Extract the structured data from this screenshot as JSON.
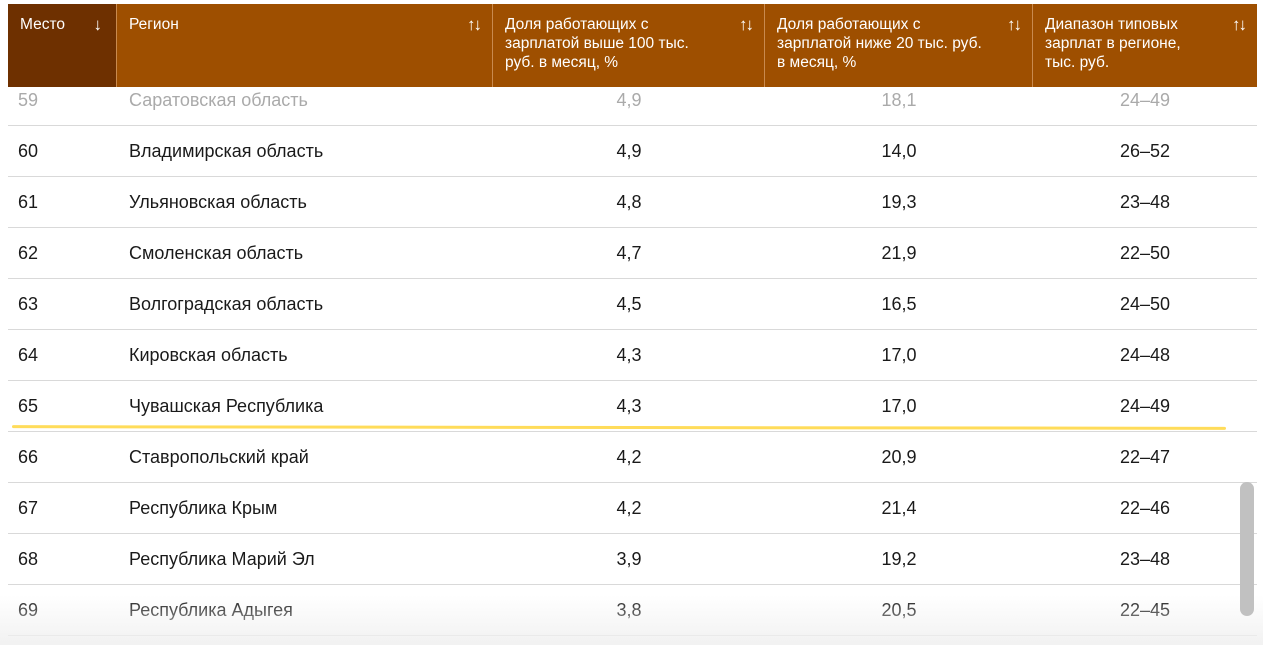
{
  "columns": [
    {
      "label": "Место",
      "sort_icon": "↓"
    },
    {
      "label": "Регион",
      "sort_icon": "↑↓"
    },
    {
      "label": "Доля работающих с зарплатой выше 100 тыс. руб. в месяц, %",
      "sort_icon": "↑↓"
    },
    {
      "label": "Доля работающих с зарплатой ниже 20 тыс. руб. в месяц, %",
      "sort_icon": "↑↓"
    },
    {
      "label": "Диапазон типовых зарплат в регионе, тыс. руб.",
      "sort_icon": "↑↓"
    }
  ],
  "rows": [
    {
      "rank": "59",
      "region": "Саратовская область",
      "above100": "4,9",
      "below20": "18,1",
      "range": "24–49"
    },
    {
      "rank": "60",
      "region": "Владимирская область",
      "above100": "4,9",
      "below20": "14,0",
      "range": "26–52"
    },
    {
      "rank": "61",
      "region": "Ульяновская область",
      "above100": "4,8",
      "below20": "19,3",
      "range": "23–48"
    },
    {
      "rank": "62",
      "region": "Смоленская область",
      "above100": "4,7",
      "below20": "21,9",
      "range": "22–50"
    },
    {
      "rank": "63",
      "region": "Волгоградская область",
      "above100": "4,5",
      "below20": "16,5",
      "range": "24–50"
    },
    {
      "rank": "64",
      "region": "Кировская область",
      "above100": "4,3",
      "below20": "17,0",
      "range": "24–48"
    },
    {
      "rank": "65",
      "region": "Чувашская Республика",
      "above100": "4,3",
      "below20": "17,0",
      "range": "24–49"
    },
    {
      "rank": "66",
      "region": "Ставропольский край",
      "above100": "4,2",
      "below20": "20,9",
      "range": "22–47"
    },
    {
      "rank": "67",
      "region": "Республика Крым",
      "above100": "4,2",
      "below20": "21,4",
      "range": "22–46"
    },
    {
      "rank": "68",
      "region": "Республика Марий Эл",
      "above100": "3,9",
      "below20": "19,2",
      "range": "23–48"
    },
    {
      "rank": "69",
      "region": "Республика Адыгея",
      "above100": "3,8",
      "below20": "20,5",
      "range": "22–45"
    }
  ],
  "colors": {
    "header": "#9e4f00",
    "header_active": "#6e3000",
    "highlight": "#ffdc5a"
  }
}
